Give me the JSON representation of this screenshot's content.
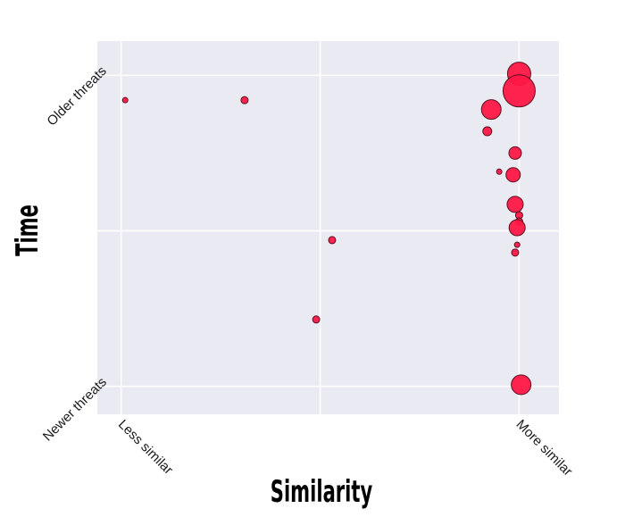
{
  "chart_data": {
    "type": "scatter",
    "title": "",
    "xlabel": "Similarity",
    "ylabel": "Time",
    "x_ticks": [
      {
        "value": 0,
        "label": "Less similar"
      },
      {
        "value": 0.5,
        "label": ""
      },
      {
        "value": 1,
        "label": "More similar"
      }
    ],
    "y_ticks": [
      {
        "value": 0,
        "label": "Newer threats"
      },
      {
        "value": 0.5,
        "label": ""
      },
      {
        "value": 1,
        "label": "Older threats"
      }
    ],
    "xlim": [
      -0.06,
      1.1
    ],
    "ylim": [
      -0.09,
      1.11
    ],
    "grid": true,
    "marker_color": "#ff1744",
    "marker_edge_color": "#5a1020",
    "background_color": "#eaeaf2",
    "grid_color": "#ffffff",
    "points": [
      {
        "x": 0.01,
        "y": 0.92,
        "size": 3
      },
      {
        "x": 0.31,
        "y": 0.92,
        "size": 4
      },
      {
        "x": 1.0,
        "y": 1.005,
        "size": 13
      },
      {
        "x": 1.0,
        "y": 0.95,
        "size": 18
      },
      {
        "x": 0.93,
        "y": 0.89,
        "size": 11
      },
      {
        "x": 0.92,
        "y": 0.82,
        "size": 5
      },
      {
        "x": 0.99,
        "y": 0.75,
        "size": 7
      },
      {
        "x": 0.95,
        "y": 0.69,
        "size": 3
      },
      {
        "x": 0.985,
        "y": 0.68,
        "size": 8
      },
      {
        "x": 0.99,
        "y": 0.585,
        "size": 9
      },
      {
        "x": 1.0,
        "y": 0.55,
        "size": 4
      },
      {
        "x": 1.0,
        "y": 0.53,
        "size": 4
      },
      {
        "x": 0.995,
        "y": 0.51,
        "size": 9
      },
      {
        "x": 0.53,
        "y": 0.47,
        "size": 4
      },
      {
        "x": 0.995,
        "y": 0.455,
        "size": 3
      },
      {
        "x": 0.99,
        "y": 0.43,
        "size": 4
      },
      {
        "x": 0.49,
        "y": 0.215,
        "size": 4
      },
      {
        "x": 1.005,
        "y": 0.005,
        "size": 11
      }
    ]
  }
}
